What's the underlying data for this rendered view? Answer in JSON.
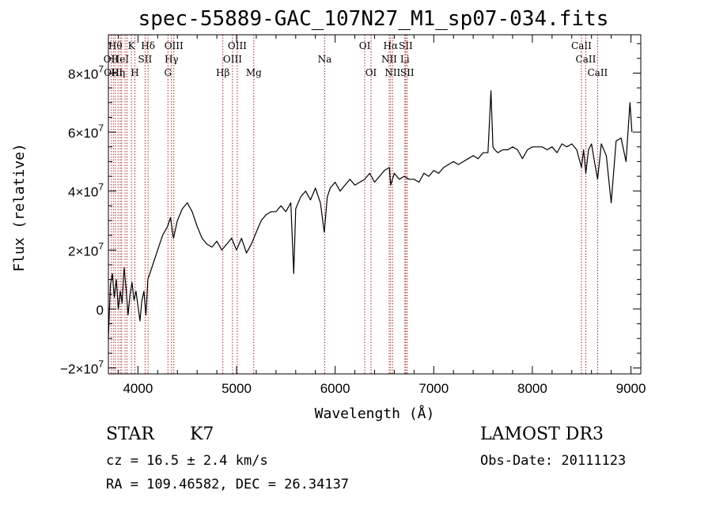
{
  "chart_data": {
    "type": "line",
    "title": "spec-55889-GAC_107N27_M1_sp07-034.fits",
    "xlabel": "Wavelength (Å)",
    "ylabel": "Flux (relative)",
    "xlim": [
      3700,
      9100
    ],
    "ylim": [
      -22000000,
      93000000
    ],
    "x_ticks": [
      {
        "value": 4000,
        "label": "4000"
      },
      {
        "value": 5000,
        "label": "5000"
      },
      {
        "value": 6000,
        "label": "6000"
      },
      {
        "value": 7000,
        "label": "7000"
      },
      {
        "value": 8000,
        "label": "8000"
      },
      {
        "value": 9000,
        "label": "9000"
      }
    ],
    "y_ticks": [
      {
        "value": -20000000,
        "mantissa": "−2×10",
        "exp": "7"
      },
      {
        "value": 0,
        "mantissa": "0",
        "exp": ""
      },
      {
        "value": 20000000,
        "mantissa": "2×10",
        "exp": "7"
      },
      {
        "value": 40000000,
        "mantissa": "4×10",
        "exp": "7"
      },
      {
        "value": 60000000,
        "mantissa": "6×10",
        "exp": "7"
      },
      {
        "value": 80000000,
        "mantissa": "8×10",
        "exp": "7"
      }
    ],
    "series": [
      {
        "color": "#000000",
        "x": [
          3700,
          3720,
          3740,
          3760,
          3780,
          3800,
          3820,
          3840,
          3860,
          3880,
          3900,
          3920,
          3940,
          3960,
          3980,
          4000,
          4020,
          4040,
          4060,
          4080,
          4100,
          4150,
          4200,
          4250,
          4300,
          4330,
          4360,
          4400,
          4450,
          4500,
          4550,
          4600,
          4650,
          4700,
          4750,
          4800,
          4850,
          4900,
          4950,
          5000,
          5050,
          5100,
          5150,
          5200,
          5250,
          5300,
          5350,
          5400,
          5450,
          5500,
          5550,
          5580,
          5600,
          5650,
          5700,
          5750,
          5800,
          5850,
          5890,
          5920,
          5950,
          6000,
          6050,
          6100,
          6150,
          6200,
          6250,
          6300,
          6350,
          6400,
          6450,
          6500,
          6550,
          6563,
          6600,
          6650,
          6700,
          6750,
          6800,
          6850,
          6900,
          6950,
          7000,
          7050,
          7100,
          7150,
          7200,
          7250,
          7300,
          7350,
          7400,
          7450,
          7500,
          7550,
          7580,
          7600,
          7620,
          7650,
          7700,
          7750,
          7800,
          7850,
          7900,
          7950,
          8000,
          8050,
          8100,
          8150,
          8200,
          8250,
          8300,
          8350,
          8400,
          8450,
          8498,
          8520,
          8542,
          8570,
          8600,
          8630,
          8662,
          8700,
          8750,
          8800,
          8850,
          8900,
          8950,
          8990,
          9010
        ],
        "y": [
          -10000000,
          8000000,
          12000000,
          4000000,
          10000000,
          0,
          6000000,
          2000000,
          14000000,
          7000000,
          -2000000,
          5000000,
          9000000,
          3000000,
          6000000,
          1000000,
          -4000000,
          3000000,
          6000000,
          -2000000,
          10000000,
          15000000,
          20000000,
          25000000,
          28000000,
          31000000,
          24000000,
          30000000,
          34000000,
          36000000,
          33000000,
          28000000,
          24000000,
          22000000,
          21000000,
          23000000,
          20000000,
          22000000,
          24000000,
          20000000,
          24000000,
          19000000,
          22000000,
          26000000,
          30000000,
          32000000,
          33000000,
          33000000,
          35000000,
          33000000,
          36000000,
          12000000,
          34000000,
          38000000,
          40000000,
          37000000,
          41000000,
          36000000,
          26000000,
          38000000,
          41000000,
          43000000,
          40000000,
          42000000,
          44000000,
          42000000,
          43000000,
          44000000,
          46000000,
          43000000,
          45000000,
          47000000,
          48000000,
          42000000,
          46000000,
          44000000,
          45000000,
          44000000,
          44000000,
          43000000,
          46000000,
          45000000,
          47000000,
          46000000,
          48000000,
          49000000,
          50000000,
          49000000,
          50000000,
          51000000,
          52000000,
          51000000,
          53000000,
          53000000,
          74000000,
          55000000,
          54000000,
          53000000,
          54000000,
          54000000,
          55000000,
          54000000,
          51000000,
          54000000,
          55000000,
          55000000,
          55000000,
          54000000,
          55000000,
          53000000,
          56000000,
          55000000,
          56000000,
          54000000,
          48000000,
          54000000,
          46000000,
          54000000,
          56000000,
          50000000,
          44000000,
          56000000,
          52000000,
          36000000,
          57000000,
          58000000,
          50000000,
          70000000,
          60000000
        ]
      }
    ],
    "lines": [
      {
        "wl": 3727,
        "label": "OII",
        "row": 1
      },
      {
        "wl": 3750,
        "label": "OIII",
        "row": 2
      },
      {
        "wl": 3770,
        "label": "Hθ",
        "row": 0
      },
      {
        "wl": 3798,
        "label": "Hη",
        "row": 2
      },
      {
        "wl": 3820,
        "label": "HeI",
        "row": 1
      },
      {
        "wl": 3835,
        "label": "",
        "row": 0
      },
      {
        "wl": 3869,
        "label": "",
        "row": 0
      },
      {
        "wl": 3889,
        "label": "",
        "row": 0
      },
      {
        "wl": 3934,
        "label": "K",
        "row": 0
      },
      {
        "wl": 3969,
        "label": "H",
        "row": 2
      },
      {
        "wl": 4072,
        "label": "SII",
        "row": 1
      },
      {
        "wl": 4102,
        "label": "Hδ",
        "row": 0
      },
      {
        "wl": 4304,
        "label": "G",
        "row": 2
      },
      {
        "wl": 4340,
        "label": "Hγ",
        "row": 1
      },
      {
        "wl": 4364,
        "label": "OIII",
        "row": 0
      },
      {
        "wl": 4861,
        "label": "Hβ",
        "row": 2
      },
      {
        "wl": 4959,
        "label": "OIII",
        "row": 1
      },
      {
        "wl": 5007,
        "label": "OIII",
        "row": 0
      },
      {
        "wl": 5175,
        "label": "Mg",
        "row": 2
      },
      {
        "wl": 5894,
        "label": "Na",
        "row": 1
      },
      {
        "wl": 6300,
        "label": "OI",
        "row": 0
      },
      {
        "wl": 6364,
        "label": "OI",
        "row": 2
      },
      {
        "wl": 6548,
        "label": "NII",
        "row": 1
      },
      {
        "wl": 6563,
        "label": "Hα",
        "row": 0
      },
      {
        "wl": 6583,
        "label": "NII",
        "row": 2
      },
      {
        "wl": 6707,
        "label": "Li",
        "row": 1
      },
      {
        "wl": 6716,
        "label": "SII",
        "row": 0
      },
      {
        "wl": 6731,
        "label": "SII",
        "row": 2
      },
      {
        "wl": 8498,
        "label": "CaII",
        "row": 0
      },
      {
        "wl": 8542,
        "label": "CaII",
        "row": 1
      },
      {
        "wl": 8662,
        "label": "CaII",
        "row": 2
      }
    ]
  },
  "info": {
    "class": "STAR",
    "subclass": "K7",
    "survey": "LAMOST DR3",
    "cz": "cz = 16.5 ± 2.4 km/s",
    "obs_date": "Obs-Date: 20111123",
    "radec": "RA = 109.46582, DEC =  26.34137"
  }
}
